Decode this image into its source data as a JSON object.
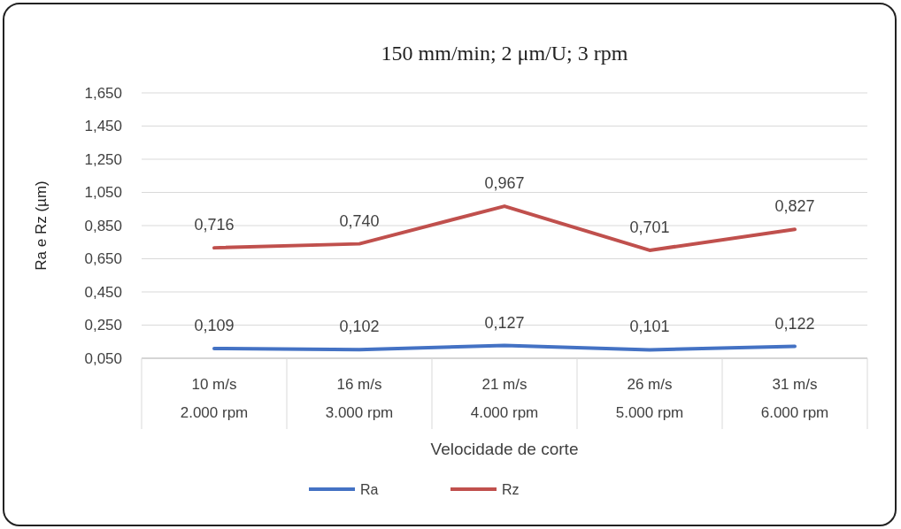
{
  "chart_data": {
    "type": "line",
    "title": "150 mm/min; 2 μm/U; 3 rpm",
    "xlabel": "Velocidade de corte",
    "ylabel": "Ra e Rz (µm)",
    "categories": [
      "10 m/s\n2.000 rpm",
      "16 m/s\n3.000 rpm",
      "21 m/s\n4.000 rpm",
      "26 m/s\n5.000 rpm",
      "31 m/s\n6.000 rpm"
    ],
    "series": [
      {
        "name": "Ra",
        "color": "#4472c4",
        "values": [
          0.109,
          0.102,
          0.127,
          0.101,
          0.122
        ],
        "value_labels": [
          "0,109",
          "0,102",
          "0,127",
          "0,101",
          "0,122"
        ]
      },
      {
        "name": "Rz",
        "color": "#c0504d",
        "values": [
          0.716,
          0.74,
          0.967,
          0.701,
          0.827
        ],
        "value_labels": [
          "0,716",
          "0,740",
          "0,967",
          "0,701",
          "0,827"
        ]
      }
    ],
    "ylim": [
      0.05,
      1.65
    ],
    "yticks": [
      {
        "value": 0.05,
        "label": "0,050"
      },
      {
        "value": 0.25,
        "label": "0,250"
      },
      {
        "value": 0.45,
        "label": "0,450"
      },
      {
        "value": 0.65,
        "label": "0,650"
      },
      {
        "value": 0.85,
        "label": "0,850"
      },
      {
        "value": 1.05,
        "label": "1,050"
      },
      {
        "value": 1.25,
        "label": "1,250"
      },
      {
        "value": 1.45,
        "label": "1,450"
      },
      {
        "value": 1.65,
        "label": "1,650"
      }
    ],
    "grid": "y",
    "legend": "bottom",
    "marker": "none",
    "line_style": "solid"
  }
}
